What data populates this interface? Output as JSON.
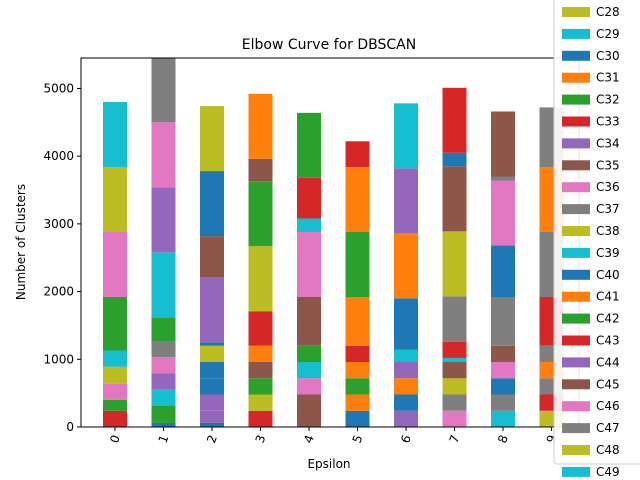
{
  "chart_data": {
    "type": "bar",
    "stacked": true,
    "title": "Elbow Curve for DBSCAN",
    "xlabel": "Epsilon",
    "ylabel": "Number of Clusters",
    "ylim": [
      0,
      5450
    ],
    "yticks": [
      0,
      1000,
      2000,
      3000,
      4000,
      5000
    ],
    "categories": [
      "0",
      "1",
      "2",
      "3",
      "4",
      "5",
      "6",
      "7",
      "8",
      "9"
    ],
    "x_tick_rotation": 70,
    "grid": false,
    "legend_position": "right (clipped at top and right edge)",
    "colors": {
      "C28": "#bcbd22",
      "C29": "#17becf",
      "C30": "#1f77b4",
      "C31": "#ff7f0e",
      "C32": "#2ca02c",
      "C33": "#d62728",
      "C34": "#9467bd",
      "C35": "#8c564b",
      "C36": "#e377c2",
      "C37": "#7f7f7f",
      "C38": "#bcbd22",
      "C39": "#17becf",
      "C40": "#1f77b4",
      "C41": "#ff7f0e",
      "C42": "#2ca02c",
      "C43": "#d62728",
      "C44": "#9467bd",
      "C45": "#8c564b",
      "C46": "#e377c2",
      "C47": "#7f7f7f",
      "C48": "#bcbd22",
      "C49": "#17becf"
    },
    "legend": [
      "C28",
      "C29",
      "C30",
      "C31",
      "C32",
      "C33",
      "C34",
      "C35",
      "C36",
      "C37",
      "C38",
      "C39",
      "C40",
      "C41",
      "C42",
      "C43",
      "C44",
      "C45",
      "C46",
      "C47",
      "C48",
      "C49"
    ],
    "stacks": [
      [
        {
          "v": 240,
          "c": "#d62728"
        },
        {
          "v": 160,
          "c": "#2ca02c"
        },
        {
          "v": 240,
          "c": "#e377c2"
        },
        {
          "v": 250,
          "c": "#bcbd22"
        },
        {
          "v": 240,
          "c": "#17becf"
        },
        {
          "v": 790,
          "c": "#2ca02c"
        },
        {
          "v": 960,
          "c": "#e377c2"
        },
        {
          "v": 960,
          "c": "#bcbd22"
        },
        {
          "v": 960,
          "c": "#17becf"
        }
      ],
      [
        {
          "v": 60,
          "c": "#1f77b4"
        },
        {
          "v": 250,
          "c": "#2ca02c"
        },
        {
          "v": 240,
          "c": "#17becf"
        },
        {
          "v": 240,
          "c": "#9467bd"
        },
        {
          "v": 240,
          "c": "#e377c2"
        },
        {
          "v": 240,
          "c": "#7f7f7f"
        },
        {
          "v": 350,
          "c": "#2ca02c"
        },
        {
          "v": 960,
          "c": "#17becf"
        },
        {
          "v": 960,
          "c": "#9467bd"
        },
        {
          "v": 960,
          "c": "#e377c2"
        },
        {
          "v": 960,
          "c": "#7f7f7f"
        }
      ],
      [
        {
          "v": 60,
          "c": "#1f77b4"
        },
        {
          "v": 180,
          "c": "#9467bd"
        },
        {
          "v": 240,
          "c": "#9467bd"
        },
        {
          "v": 240,
          "c": "#1f77b4"
        },
        {
          "v": 240,
          "c": "#1f77b4"
        },
        {
          "v": 240,
          "c": "#bcbd22"
        },
        {
          "v": 50,
          "c": "#1f77b4"
        },
        {
          "v": 960,
          "c": "#9467bd"
        },
        {
          "v": 610,
          "c": "#8c564b"
        },
        {
          "v": 960,
          "c": "#1f77b4"
        },
        {
          "v": 960,
          "c": "#bcbd22"
        }
      ],
      [
        {
          "v": 240,
          "c": "#d62728"
        },
        {
          "v": 240,
          "c": "#bcbd22"
        },
        {
          "v": 240,
          "c": "#2ca02c"
        },
        {
          "v": 240,
          "c": "#8c564b"
        },
        {
          "v": 240,
          "c": "#ff7f0e"
        },
        {
          "v": 510,
          "c": "#d62728"
        },
        {
          "v": 960,
          "c": "#bcbd22"
        },
        {
          "v": 960,
          "c": "#2ca02c"
        },
        {
          "v": 330,
          "c": "#8c564b"
        },
        {
          "v": 960,
          "c": "#ff7f0e"
        }
      ],
      [
        {
          "v": 480,
          "c": "#8c564b"
        },
        {
          "v": 240,
          "c": "#e377c2"
        },
        {
          "v": 240,
          "c": "#17becf"
        },
        {
          "v": 240,
          "c": "#2ca02c"
        },
        {
          "v": 720,
          "c": "#8c564b"
        },
        {
          "v": 960,
          "c": "#e377c2"
        },
        {
          "v": 200,
          "c": "#17becf"
        },
        {
          "v": 600,
          "c": "#d62728"
        },
        {
          "v": 960,
          "c": "#2ca02c"
        }
      ],
      [
        {
          "v": 240,
          "c": "#1f77b4"
        },
        {
          "v": 240,
          "c": "#ff7f0e"
        },
        {
          "v": 240,
          "c": "#2ca02c"
        },
        {
          "v": 240,
          "c": "#ff7f0e"
        },
        {
          "v": 240,
          "c": "#d62728"
        },
        {
          "v": 720,
          "c": "#ff7f0e"
        },
        {
          "v": 960,
          "c": "#2ca02c"
        },
        {
          "v": 960,
          "c": "#ff7f0e"
        },
        {
          "v": 380,
          "c": "#d62728"
        }
      ],
      [
        {
          "v": 240,
          "c": "#9467bd"
        },
        {
          "v": 240,
          "c": "#1f77b4"
        },
        {
          "v": 240,
          "c": "#ff7f0e"
        },
        {
          "v": 240,
          "c": "#9467bd"
        },
        {
          "v": 180,
          "c": "#17becf"
        },
        {
          "v": 760,
          "c": "#1f77b4"
        },
        {
          "v": 960,
          "c": "#ff7f0e"
        },
        {
          "v": 960,
          "c": "#9467bd"
        },
        {
          "v": 960,
          "c": "#17becf"
        }
      ],
      [
        {
          "v": 240,
          "c": "#e377c2"
        },
        {
          "v": 240,
          "c": "#7f7f7f"
        },
        {
          "v": 240,
          "c": "#bcbd22"
        },
        {
          "v": 240,
          "c": "#8c564b"
        },
        {
          "v": 60,
          "c": "#17becf"
        },
        {
          "v": 240,
          "c": "#d62728"
        },
        {
          "v": 670,
          "c": "#7f7f7f"
        },
        {
          "v": 960,
          "c": "#bcbd22"
        },
        {
          "v": 960,
          "c": "#8c564b"
        },
        {
          "v": 200,
          "c": "#1f77b4"
        },
        {
          "v": 960,
          "c": "#d62728"
        }
      ],
      [
        {
          "v": 240,
          "c": "#17becf"
        },
        {
          "v": 240,
          "c": "#7f7f7f"
        },
        {
          "v": 240,
          "c": "#1f77b4"
        },
        {
          "v": 240,
          "c": "#e377c2"
        },
        {
          "v": 240,
          "c": "#8c564b"
        },
        {
          "v": 720,
          "c": "#7f7f7f"
        },
        {
          "v": 760,
          "c": "#1f77b4"
        },
        {
          "v": 960,
          "c": "#e377c2"
        },
        {
          "v": 60,
          "c": "#7f7f7f"
        },
        {
          "v": 960,
          "c": "#8c564b"
        }
      ],
      [
        {
          "v": 240,
          "c": "#bcbd22"
        },
        {
          "v": 240,
          "c": "#d62728"
        },
        {
          "v": 240,
          "c": "#7f7f7f"
        },
        {
          "v": 240,
          "c": "#ff7f0e"
        },
        {
          "v": 240,
          "c": "#7f7f7f"
        },
        {
          "v": 720,
          "c": "#d62728"
        },
        {
          "v": 960,
          "c": "#7f7f7f"
        },
        {
          "v": 960,
          "c": "#ff7f0e"
        },
        {
          "v": 880,
          "c": "#7f7f7f"
        }
      ]
    ]
  }
}
